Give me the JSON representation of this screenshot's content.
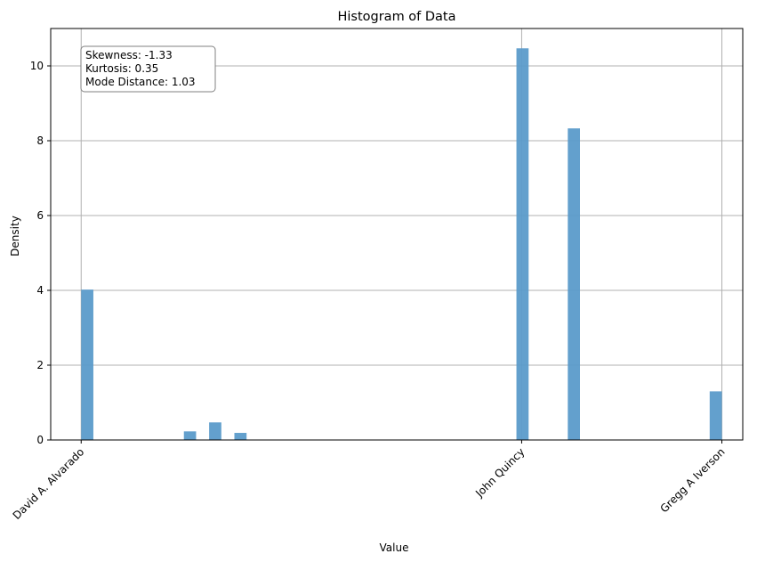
{
  "chart_data": {
    "type": "bar",
    "title": "Histogram of Data",
    "xlabel": "Value",
    "ylabel": "Density",
    "xlim": [
      -0.35,
      7.6
    ],
    "ylim": [
      0,
      11
    ],
    "grid": true,
    "bar_color": "#5b9bca",
    "bin_width": 0.14,
    "bins": [
      {
        "x": 0.0,
        "density": 4.02
      },
      {
        "x": 1.18,
        "density": 0.23
      },
      {
        "x": 1.47,
        "density": 0.47
      },
      {
        "x": 1.76,
        "density": 0.19
      },
      {
        "x": 5.0,
        "density": 10.47
      },
      {
        "x": 5.59,
        "density": 8.33
      },
      {
        "x": 7.22,
        "density": 1.3
      }
    ],
    "y_ticks": [
      "0",
      "2",
      "4",
      "6",
      "8",
      "10"
    ],
    "x_ticks": [
      {
        "label": "David A. Alvarado",
        "value": 0.0
      },
      {
        "label": "John Quincy",
        "value": 5.06
      },
      {
        "label": "Gregg A Iverson",
        "value": 7.36
      }
    ],
    "annotation": {
      "lines": [
        "Skewness: -1.33",
        "Kurtosis: 0.35",
        "Mode Distance: 1.03"
      ],
      "position": "top-left"
    }
  }
}
